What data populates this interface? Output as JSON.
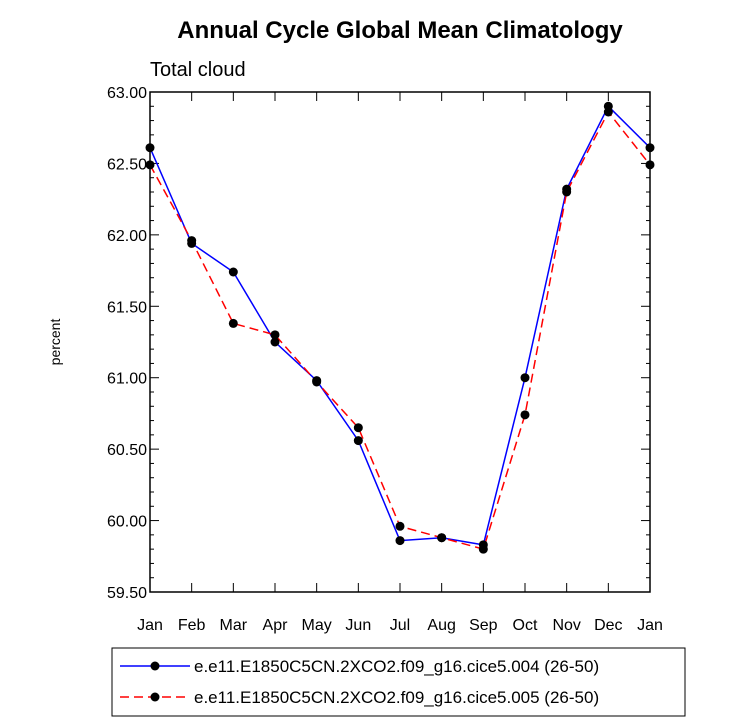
{
  "chart_data": {
    "type": "line",
    "title": "Annual Cycle Global Mean Climatology",
    "subtitle": "Total cloud",
    "xlabel": "",
    "ylabel": "percent",
    "categories": [
      "Jan",
      "Feb",
      "Mar",
      "Apr",
      "May",
      "Jun",
      "Jul",
      "Aug",
      "Sep",
      "Oct",
      "Nov",
      "Dec",
      "Jan"
    ],
    "ylim": [
      59.5,
      63.0
    ],
    "yticks": [
      "59.50",
      "60.00",
      "60.50",
      "61.00",
      "61.50",
      "62.00",
      "62.50",
      "63.00"
    ],
    "grid": false,
    "legend_position": "bottom",
    "series": [
      {
        "name": "e.e11.E1850C5CN.2XCO2.f09_g16.cice5.004 (26-50)",
        "color": "#0000ff",
        "dash": "solid",
        "values": [
          62.61,
          61.94,
          61.74,
          61.25,
          60.98,
          60.56,
          59.86,
          59.88,
          59.83,
          61.0,
          62.32,
          62.9,
          62.61
        ]
      },
      {
        "name": "e.e11.E1850C5CN.2XCO2.f09_g16.cice5.005 (26-50)",
        "color": "#ff0000",
        "dash": "dashed",
        "values": [
          62.49,
          61.96,
          61.38,
          61.3,
          60.97,
          60.65,
          59.96,
          59.88,
          59.8,
          60.74,
          62.3,
          62.86,
          62.49
        ]
      }
    ]
  }
}
